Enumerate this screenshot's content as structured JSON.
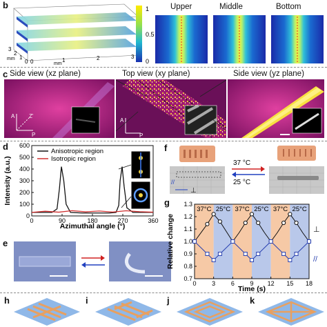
{
  "panels": {
    "b": "b",
    "c": "c",
    "d": "d",
    "e": "e",
    "f": "f",
    "g": "g",
    "h": "h",
    "i": "i",
    "j": "j",
    "k": "k"
  },
  "panel_b": {
    "colorbar_ticks": [
      "1",
      "0.5",
      "0"
    ],
    "axis_x_unit": "mm",
    "axis_y_unit": "mm",
    "axis_ticks_left": [
      "3",
      "2",
      "1",
      "0"
    ],
    "axis_ticks_front": [
      "0",
      "1",
      "2",
      "3"
    ],
    "layer_labels": [
      "Upper",
      "Middle",
      "Bottom"
    ]
  },
  "panel_c": {
    "views": [
      "Side view (xz plane)",
      "Top view (xy plane)",
      "Side view (yz plane)"
    ],
    "axis_marks": {
      "a": "A",
      "p": "P",
      "z": "Z'"
    }
  },
  "panel_e_note": "",
  "panel_f": {
    "temp_up": "37 °C",
    "temp_down": "25 °C",
    "parallel": "//",
    "perp": "⊥"
  },
  "colors": {
    "warm": "#f6c9a6",
    "cool": "#b9c8ea",
    "anisotropic": "#111111",
    "isotropic": "#d03030",
    "gel": "#e8a27a"
  },
  "chart_data": [
    {
      "type": "line",
      "panel": "d",
      "xlabel": "Azimuthal angle (°)",
      "ylabel": "Intensity (a.u.)",
      "xlim": [
        0,
        360
      ],
      "ylim": [
        0,
        600
      ],
      "xticks": [
        0,
        90,
        180,
        270,
        360
      ],
      "yticks": [
        0,
        100,
        200,
        300,
        400,
        500,
        600
      ],
      "legend_position": "top-left",
      "series": [
        {
          "name": "Anisotropic region",
          "x": [
            0,
            60,
            75,
            82,
            88,
            95,
            102,
            115,
            150,
            180,
            230,
            250,
            258,
            262,
            268,
            274,
            282,
            300,
            330,
            360
          ],
          "y": [
            30,
            30,
            60,
            230,
            420,
            300,
            100,
            30,
            25,
            25,
            25,
            30,
            90,
            300,
            420,
            250,
            70,
            30,
            30,
            30
          ]
        },
        {
          "name": "Isotropic region",
          "x": [
            0,
            40,
            80,
            120,
            160,
            200,
            240,
            280,
            320,
            360
          ],
          "y": [
            30,
            40,
            32,
            45,
            35,
            42,
            33,
            44,
            36,
            32
          ]
        }
      ]
    },
    {
      "type": "line",
      "panel": "g",
      "xlabel": "Time (s)",
      "ylabel": "Relative change",
      "xlim": [
        0,
        18
      ],
      "ylim": [
        0.7,
        1.3
      ],
      "xticks": [
        0,
        3,
        6,
        9,
        12,
        15,
        18
      ],
      "yticks": [
        0.7,
        0.8,
        0.9,
        1.0,
        1.1,
        1.2,
        1.3
      ],
      "bands": [
        {
          "from": 0,
          "to": 3,
          "label": "37°C",
          "tone": "warm"
        },
        {
          "from": 3,
          "to": 6,
          "label": "25°C",
          "tone": "cool"
        },
        {
          "from": 6,
          "to": 9,
          "label": "37°C",
          "tone": "warm"
        },
        {
          "from": 9,
          "to": 12,
          "label": "25°C",
          "tone": "cool"
        },
        {
          "from": 12,
          "to": 15,
          "label": "37°C",
          "tone": "warm"
        },
        {
          "from": 15,
          "to": 18,
          "label": "25°C",
          "tone": "cool"
        }
      ],
      "series": [
        {
          "name": "⊥",
          "marker": "circle",
          "x": [
            0,
            1,
            2,
            3,
            4,
            5,
            6,
            7,
            8,
            9,
            10,
            11,
            12,
            13,
            14,
            15,
            16,
            17,
            18
          ],
          "y": [
            1.0,
            1.07,
            1.14,
            1.22,
            1.16,
            1.08,
            1.0,
            1.07,
            1.15,
            1.22,
            1.15,
            1.07,
            1.0,
            1.07,
            1.15,
            1.22,
            1.15,
            1.07,
            1.0
          ]
        },
        {
          "name": "//",
          "marker": "square",
          "x": [
            0,
            1,
            2,
            3,
            4,
            5,
            6,
            7,
            8,
            9,
            10,
            11,
            12,
            13,
            14,
            15,
            16,
            17,
            18
          ],
          "y": [
            1.0,
            0.95,
            0.9,
            0.85,
            0.9,
            0.95,
            1.0,
            0.95,
            0.9,
            0.85,
            0.9,
            0.95,
            1.0,
            0.95,
            0.9,
            0.85,
            0.9,
            0.95,
            1.0
          ]
        }
      ]
    }
  ]
}
